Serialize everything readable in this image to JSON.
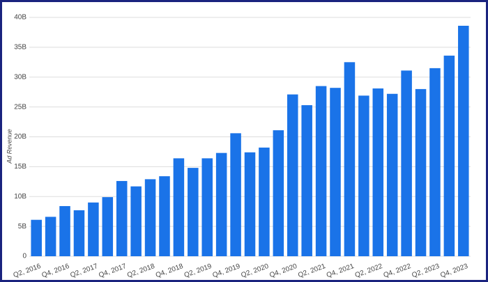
{
  "chart_data": {
    "type": "bar",
    "y_label": "Ad Revenue",
    "categories": [
      "Q2, 2016",
      null,
      "Q4, 2016",
      null,
      "Q2, 2017",
      null,
      "Q4, 2017",
      null,
      "Q2, 2018",
      null,
      "Q4, 2018",
      null,
      "Q2, 2019",
      null,
      "Q4, 2019",
      null,
      "Q2, 2020",
      null,
      "Q4, 2020",
      null,
      "Q2, 2021",
      null,
      "Q4, 2021",
      null,
      "Q2, 2022",
      null,
      "Q4, 2022",
      null,
      "Q2, 2023",
      null,
      "Q4, 2023"
    ],
    "values": [
      6.1,
      6.6,
      8.4,
      7.7,
      9.0,
      9.9,
      12.6,
      11.7,
      12.9,
      13.4,
      16.4,
      14.8,
      16.4,
      17.3,
      20.6,
      17.4,
      18.2,
      21.1,
      27.1,
      25.3,
      28.5,
      28.2,
      32.5,
      26.9,
      28.1,
      27.2,
      31.1,
      28.0,
      31.5,
      33.6,
      38.6
    ],
    "color": "#1a73e8",
    "ylim": [
      0,
      40
    ],
    "yticks": [
      0,
      {
        "value": 5,
        "label": "5B"
      },
      {
        "value": 10,
        "label": "10B"
      },
      {
        "value": 15,
        "label": "15B"
      },
      {
        "value": 20,
        "label": "20B"
      },
      {
        "value": 25,
        "label": "25B"
      },
      {
        "value": 30,
        "label": "30B"
      },
      {
        "value": 35,
        "label": "35B"
      },
      {
        "value": 40,
        "label": "40B"
      }
    ],
    "grid": true
  }
}
